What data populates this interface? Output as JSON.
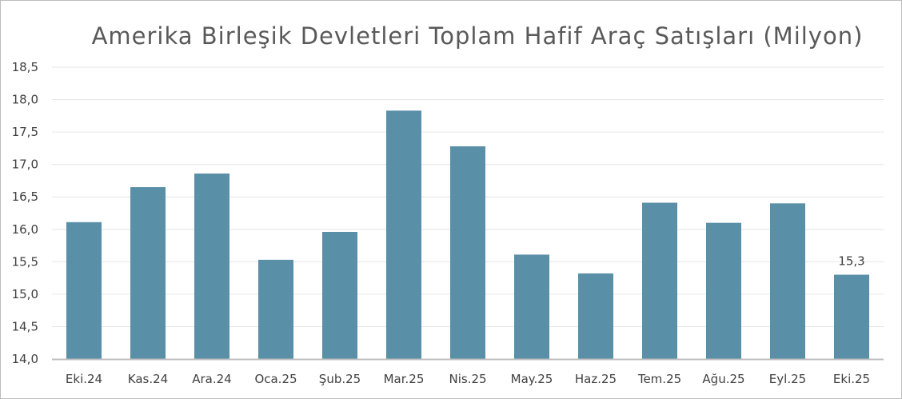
{
  "chart_data": {
    "type": "bar",
    "title": "Amerika Birleşik Devletleri Toplam Hafif Araç Satışları (Milyon)",
    "xlabel": "",
    "ylabel": "",
    "categories": [
      "Eki.24",
      "Kas.24",
      "Ara.24",
      "Oca.25",
      "Şub.25",
      "Mar.25",
      "Nis.25",
      "May.25",
      "Haz.25",
      "Tem.25",
      "Ağu.25",
      "Eyl.25",
      "Eki.25"
    ],
    "values": [
      16.11,
      16.65,
      16.86,
      15.53,
      15.96,
      17.83,
      17.28,
      15.61,
      15.32,
      16.41,
      16.1,
      16.4,
      15.3
    ],
    "ylim": [
      14.0,
      18.5
    ],
    "yticks": [
      "14,0",
      "14,5",
      "15,0",
      "15,5",
      "16,0",
      "16,5",
      "17,0",
      "17,5",
      "18,0",
      "18,5"
    ],
    "data_labels": [
      {
        "index": 12,
        "text": "15,3"
      }
    ],
    "grid": true,
    "legend": "none",
    "bar_color": "#5a8fa8"
  }
}
